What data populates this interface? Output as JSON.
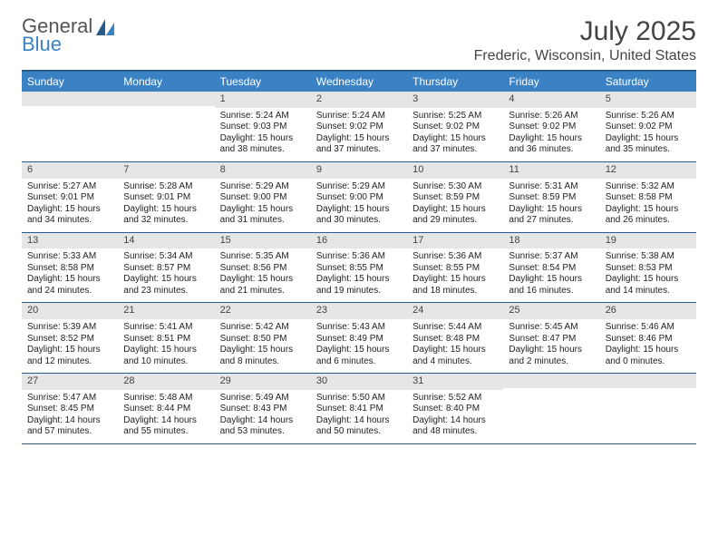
{
  "brand": {
    "word1": "General",
    "word2": "Blue"
  },
  "title": "July 2025",
  "location": "Frederic, Wisconsin, United States",
  "colors": {
    "header_bg": "#3b82c4",
    "border": "#2a5a8a",
    "daynum_bg": "#e6e6e6",
    "text": "#222222"
  },
  "day_names": [
    "Sunday",
    "Monday",
    "Tuesday",
    "Wednesday",
    "Thursday",
    "Friday",
    "Saturday"
  ],
  "weeks": [
    [
      {
        "n": "",
        "sr": "",
        "ss": "",
        "dl": ""
      },
      {
        "n": "",
        "sr": "",
        "ss": "",
        "dl": ""
      },
      {
        "n": "1",
        "sr": "Sunrise: 5:24 AM",
        "ss": "Sunset: 9:03 PM",
        "dl": "Daylight: 15 hours and 38 minutes."
      },
      {
        "n": "2",
        "sr": "Sunrise: 5:24 AM",
        "ss": "Sunset: 9:02 PM",
        "dl": "Daylight: 15 hours and 37 minutes."
      },
      {
        "n": "3",
        "sr": "Sunrise: 5:25 AM",
        "ss": "Sunset: 9:02 PM",
        "dl": "Daylight: 15 hours and 37 minutes."
      },
      {
        "n": "4",
        "sr": "Sunrise: 5:26 AM",
        "ss": "Sunset: 9:02 PM",
        "dl": "Daylight: 15 hours and 36 minutes."
      },
      {
        "n": "5",
        "sr": "Sunrise: 5:26 AM",
        "ss": "Sunset: 9:02 PM",
        "dl": "Daylight: 15 hours and 35 minutes."
      }
    ],
    [
      {
        "n": "6",
        "sr": "Sunrise: 5:27 AM",
        "ss": "Sunset: 9:01 PM",
        "dl": "Daylight: 15 hours and 34 minutes."
      },
      {
        "n": "7",
        "sr": "Sunrise: 5:28 AM",
        "ss": "Sunset: 9:01 PM",
        "dl": "Daylight: 15 hours and 32 minutes."
      },
      {
        "n": "8",
        "sr": "Sunrise: 5:29 AM",
        "ss": "Sunset: 9:00 PM",
        "dl": "Daylight: 15 hours and 31 minutes."
      },
      {
        "n": "9",
        "sr": "Sunrise: 5:29 AM",
        "ss": "Sunset: 9:00 PM",
        "dl": "Daylight: 15 hours and 30 minutes."
      },
      {
        "n": "10",
        "sr": "Sunrise: 5:30 AM",
        "ss": "Sunset: 8:59 PM",
        "dl": "Daylight: 15 hours and 29 minutes."
      },
      {
        "n": "11",
        "sr": "Sunrise: 5:31 AM",
        "ss": "Sunset: 8:59 PM",
        "dl": "Daylight: 15 hours and 27 minutes."
      },
      {
        "n": "12",
        "sr": "Sunrise: 5:32 AM",
        "ss": "Sunset: 8:58 PM",
        "dl": "Daylight: 15 hours and 26 minutes."
      }
    ],
    [
      {
        "n": "13",
        "sr": "Sunrise: 5:33 AM",
        "ss": "Sunset: 8:58 PM",
        "dl": "Daylight: 15 hours and 24 minutes."
      },
      {
        "n": "14",
        "sr": "Sunrise: 5:34 AM",
        "ss": "Sunset: 8:57 PM",
        "dl": "Daylight: 15 hours and 23 minutes."
      },
      {
        "n": "15",
        "sr": "Sunrise: 5:35 AM",
        "ss": "Sunset: 8:56 PM",
        "dl": "Daylight: 15 hours and 21 minutes."
      },
      {
        "n": "16",
        "sr": "Sunrise: 5:36 AM",
        "ss": "Sunset: 8:55 PM",
        "dl": "Daylight: 15 hours and 19 minutes."
      },
      {
        "n": "17",
        "sr": "Sunrise: 5:36 AM",
        "ss": "Sunset: 8:55 PM",
        "dl": "Daylight: 15 hours and 18 minutes."
      },
      {
        "n": "18",
        "sr": "Sunrise: 5:37 AM",
        "ss": "Sunset: 8:54 PM",
        "dl": "Daylight: 15 hours and 16 minutes."
      },
      {
        "n": "19",
        "sr": "Sunrise: 5:38 AM",
        "ss": "Sunset: 8:53 PM",
        "dl": "Daylight: 15 hours and 14 minutes."
      }
    ],
    [
      {
        "n": "20",
        "sr": "Sunrise: 5:39 AM",
        "ss": "Sunset: 8:52 PM",
        "dl": "Daylight: 15 hours and 12 minutes."
      },
      {
        "n": "21",
        "sr": "Sunrise: 5:41 AM",
        "ss": "Sunset: 8:51 PM",
        "dl": "Daylight: 15 hours and 10 minutes."
      },
      {
        "n": "22",
        "sr": "Sunrise: 5:42 AM",
        "ss": "Sunset: 8:50 PM",
        "dl": "Daylight: 15 hours and 8 minutes."
      },
      {
        "n": "23",
        "sr": "Sunrise: 5:43 AM",
        "ss": "Sunset: 8:49 PM",
        "dl": "Daylight: 15 hours and 6 minutes."
      },
      {
        "n": "24",
        "sr": "Sunrise: 5:44 AM",
        "ss": "Sunset: 8:48 PM",
        "dl": "Daylight: 15 hours and 4 minutes."
      },
      {
        "n": "25",
        "sr": "Sunrise: 5:45 AM",
        "ss": "Sunset: 8:47 PM",
        "dl": "Daylight: 15 hours and 2 minutes."
      },
      {
        "n": "26",
        "sr": "Sunrise: 5:46 AM",
        "ss": "Sunset: 8:46 PM",
        "dl": "Daylight: 15 hours and 0 minutes."
      }
    ],
    [
      {
        "n": "27",
        "sr": "Sunrise: 5:47 AM",
        "ss": "Sunset: 8:45 PM",
        "dl": "Daylight: 14 hours and 57 minutes."
      },
      {
        "n": "28",
        "sr": "Sunrise: 5:48 AM",
        "ss": "Sunset: 8:44 PM",
        "dl": "Daylight: 14 hours and 55 minutes."
      },
      {
        "n": "29",
        "sr": "Sunrise: 5:49 AM",
        "ss": "Sunset: 8:43 PM",
        "dl": "Daylight: 14 hours and 53 minutes."
      },
      {
        "n": "30",
        "sr": "Sunrise: 5:50 AM",
        "ss": "Sunset: 8:41 PM",
        "dl": "Daylight: 14 hours and 50 minutes."
      },
      {
        "n": "31",
        "sr": "Sunrise: 5:52 AM",
        "ss": "Sunset: 8:40 PM",
        "dl": "Daylight: 14 hours and 48 minutes."
      },
      {
        "n": "",
        "sr": "",
        "ss": "",
        "dl": ""
      },
      {
        "n": "",
        "sr": "",
        "ss": "",
        "dl": ""
      }
    ]
  ]
}
